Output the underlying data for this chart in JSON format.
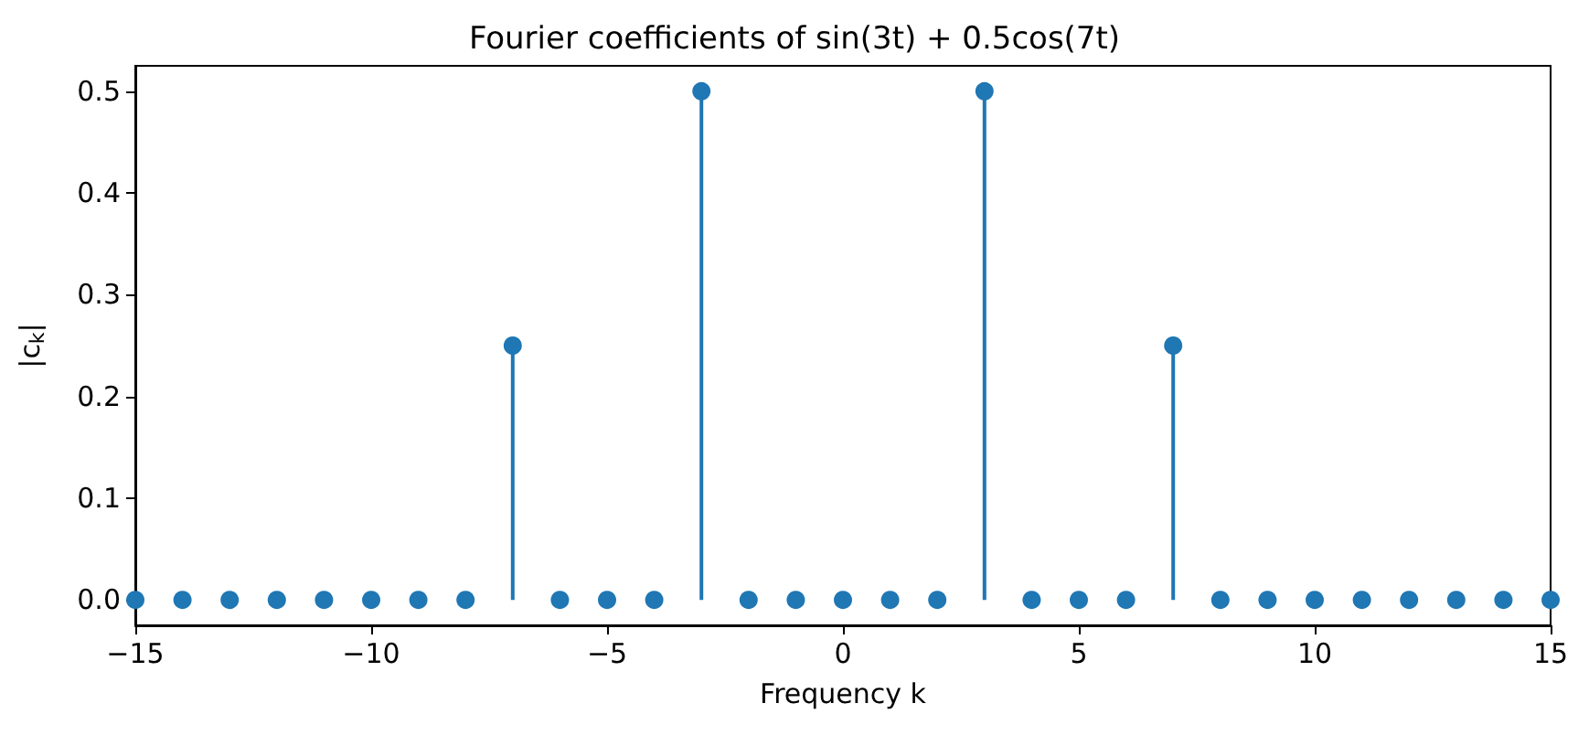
{
  "chart_data": {
    "type": "lollipop",
    "title": "Fourier coefficients of sin(3t) + 0.5cos(7t)",
    "xlabel": "Frequency k",
    "ylabel": "|c$_{k}$|",
    "x": [
      -15,
      -14,
      -13,
      -12,
      -11,
      -10,
      -9,
      -8,
      -7,
      -6,
      -5,
      -4,
      -3,
      -2,
      -1,
      0,
      1,
      2,
      3,
      4,
      5,
      6,
      7,
      8,
      9,
      10,
      11,
      12,
      13,
      14,
      15
    ],
    "series": [
      {
        "color": "#1f77b4",
        "values": [
          0,
          0,
          0,
          0,
          0,
          0,
          0,
          0,
          0.25,
          0,
          0,
          0,
          0.5,
          0,
          0,
          0,
          0,
          0,
          0.5,
          0,
          0,
          0,
          0.25,
          0,
          0,
          0,
          0,
          0,
          0,
          0,
          0
        ]
      }
    ],
    "xlim": [
      -15,
      15
    ],
    "xticks": [
      {
        "value": -15,
        "label": "−15"
      },
      {
        "value": -10,
        "label": "−10"
      },
      {
        "value": -5,
        "label": "−5"
      },
      0,
      5,
      10,
      15
    ],
    "ylim": [
      -0.025,
      0.525
    ],
    "yticks": [
      {
        "value": 0,
        "label": "0.0"
      },
      0.1,
      0.2,
      0.3,
      0.4,
      0.5
    ],
    "marker": "circle"
  }
}
